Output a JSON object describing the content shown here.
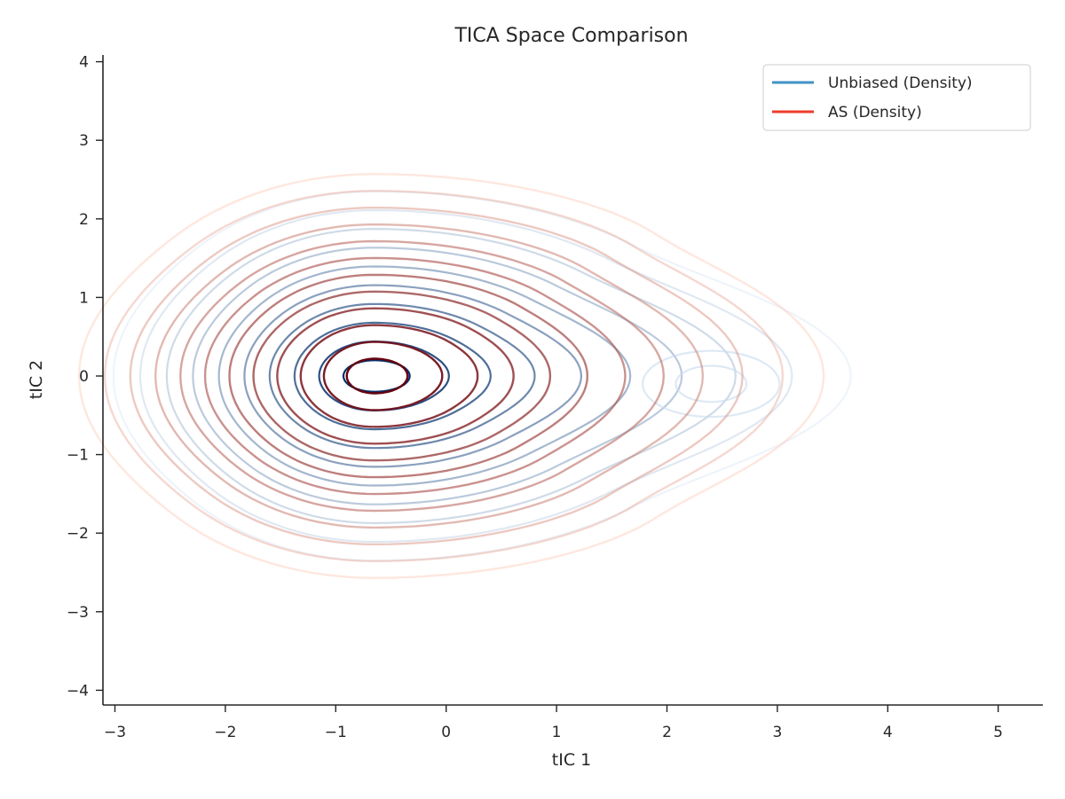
{
  "chart_data": {
    "type": "contour",
    "title": "TICA Space Comparison",
    "xlabel": "tIC 1",
    "ylabel": "tIC 2",
    "xlim": [
      -3.1,
      5.4
    ],
    "ylim": [
      -4.15,
      4.1
    ],
    "x_ticks": [
      -3,
      -2,
      -1,
      0,
      1,
      2,
      3,
      4,
      5
    ],
    "y_ticks": [
      -4,
      -3,
      -2,
      -1,
      0,
      1,
      2,
      3,
      4
    ],
    "x_tick_labels": [
      "−3",
      "−2",
      "−1",
      "0",
      "1",
      "2",
      "3",
      "4",
      "5"
    ],
    "y_tick_labels": [
      "−4",
      "−3",
      "−2",
      "−1",
      "0",
      "1",
      "2",
      "3",
      "4"
    ],
    "grid": false,
    "legend_position": "top-right",
    "series": [
      {
        "name": "Unbiased (Density)",
        "kind": "kde-contours",
        "colormap": "Blues",
        "legend_color": "#4292c6",
        "peak": [
          -0.65,
          0.0
        ],
        "secondary_peak": [
          2.4,
          -0.1
        ],
        "levels": 10
      },
      {
        "name": "AS (Density)",
        "kind": "kde-contours",
        "colormap": "Reds",
        "legend_color": "#ef3b2c",
        "peak": [
          -0.65,
          0.0
        ],
        "levels": 12
      }
    ]
  }
}
